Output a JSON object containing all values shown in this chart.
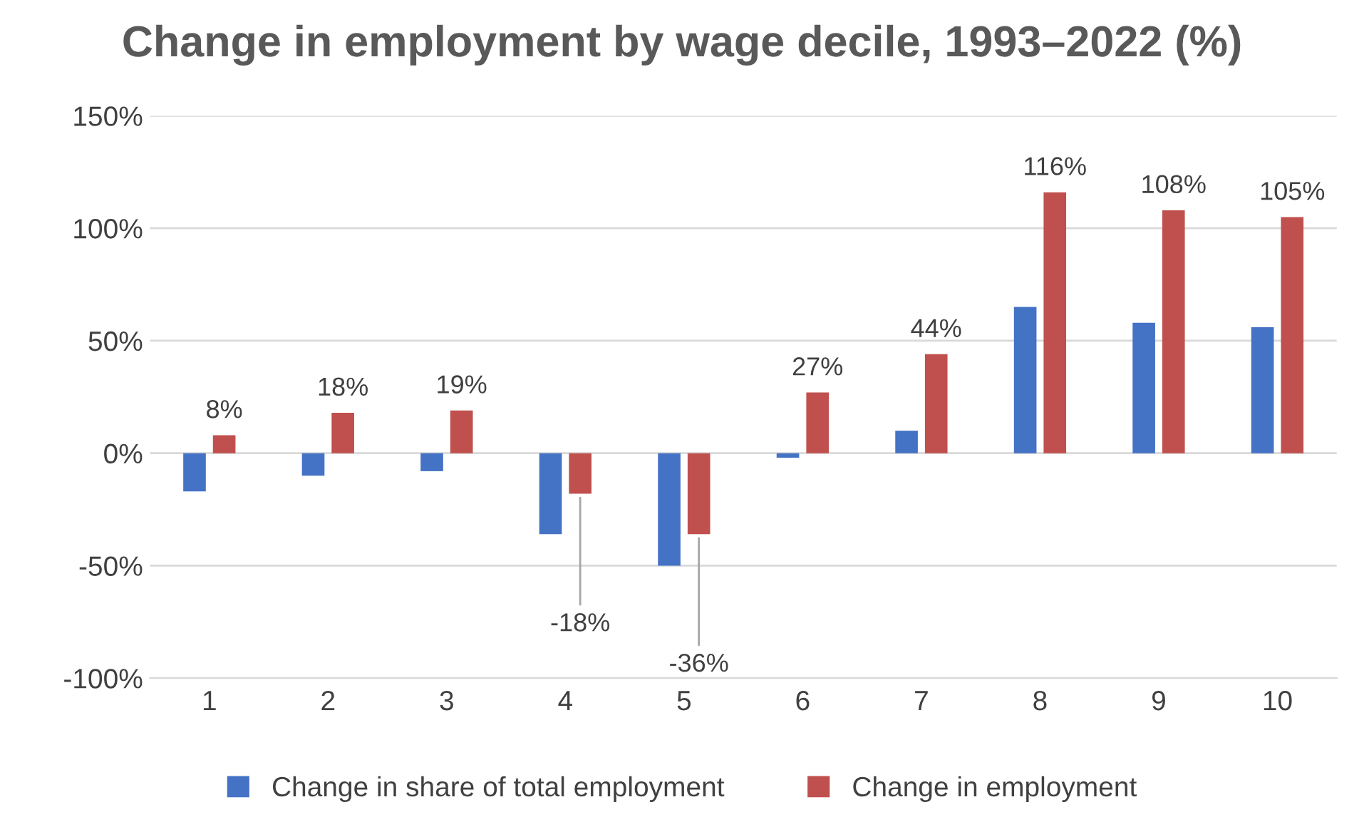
{
  "chart_data": {
    "type": "bar",
    "title": "Change in employment by wage decile, 1993–2022 (%)",
    "categories": [
      "1",
      "2",
      "3",
      "4",
      "5",
      "6",
      "7",
      "8",
      "9",
      "10"
    ],
    "series": [
      {
        "name": "Change in share of total employment",
        "color": "#4472c4",
        "values": [
          -17,
          -10,
          -8,
          -36,
          -50,
          -2,
          10,
          65,
          58,
          56
        ]
      },
      {
        "name": "Change in employment",
        "color": "#c0504d",
        "values": [
          8,
          18,
          19,
          -18,
          -36,
          27,
          44,
          116,
          108,
          105
        ],
        "value_labels": [
          "8%",
          "18%",
          "19%",
          "-18%",
          "-36%",
          "27%",
          "44%",
          "116%",
          "108%",
          "105%"
        ]
      }
    ],
    "ylim": [
      -100,
      150
    ],
    "yticks": [
      {
        "value": -100,
        "label": "-100%"
      },
      {
        "value": -50,
        "label": "-50%"
      },
      {
        "value": 0,
        "label": "0%"
      },
      {
        "value": 50,
        "label": "50%"
      },
      {
        "value": 100,
        "label": "100%"
      },
      {
        "value": 150,
        "label": "150%"
      }
    ],
    "grid": "y",
    "legend": "bottom"
  }
}
